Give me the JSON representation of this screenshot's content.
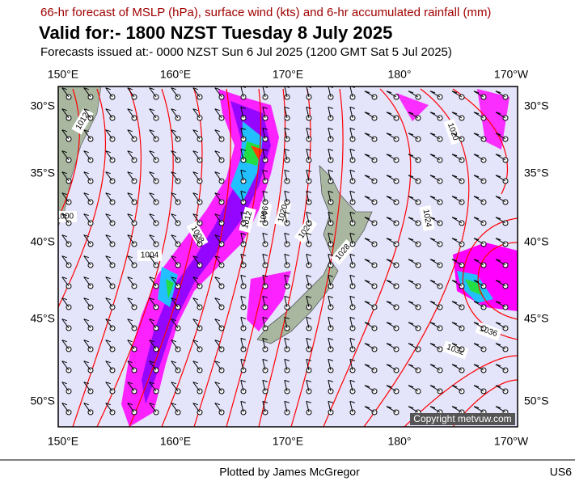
{
  "header": {
    "subtitle": "66-hr forecast of MSLP (hPa), surface wind (kts) and 6-hr accumulated rainfall (mm)",
    "title": "Valid for:- 1800 NZST Tuesday 8 July 2025",
    "issued": "Forecasts issued at:- 0000 NZST Sun 6 Jul 2025 (1200 GMT Sat 5 Jul 2025)"
  },
  "map": {
    "lon_labels": [
      "150°E",
      "160°E",
      "170°E",
      "180°",
      "170°W"
    ],
    "lat_labels": [
      "30°S",
      "35°S",
      "40°S",
      "45°S",
      "50°S"
    ],
    "isobar_labels": [
      "1012",
      "1000",
      "1008",
      "1004",
      "1012",
      "1006",
      "1020",
      "1024",
      "1028",
      "1024",
      "1020",
      "1036",
      "1032"
    ],
    "copyright": "Copyright metvuw.com"
  },
  "footer": {
    "credit": "Plotted by James McGregor",
    "code": "US6"
  }
}
